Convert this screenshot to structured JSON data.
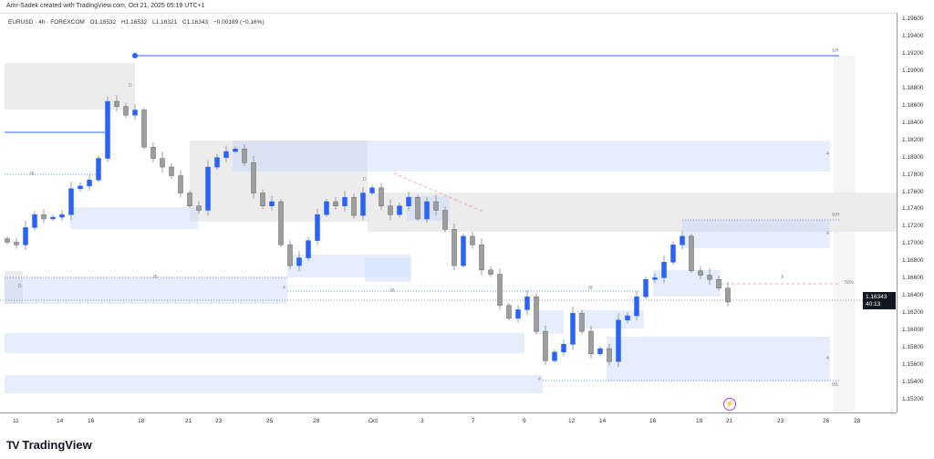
{
  "credit": "Amr-Sadek created with TradingView.com, Oct 21, 2025 05:19 UTC+1",
  "legend": {
    "symbol": "EURUSD · 4h · FOREXCOM",
    "open": "O1.16532",
    "high": "H1.16532",
    "low": "L1.16321",
    "close": "C1.16343",
    "change": "−0.00189 (−0.16%)"
  },
  "price_ticks": [
    "1.19600",
    "1.19400",
    "1.19200",
    "1.19000",
    "1.18800",
    "1.18600",
    "1.18400",
    "1.18200",
    "1.18000",
    "1.17800",
    "1.17600",
    "1.17400",
    "1.17200",
    "1.17000",
    "1.16800",
    "1.16600",
    "1.16400",
    "1.16200",
    "1.16000",
    "1.15800",
    "1.15600",
    "1.15400",
    "1.15200"
  ],
  "time_ticks": [
    "11",
    "14",
    "16",
    "18",
    "21",
    "23",
    "25",
    "28",
    "Oct",
    "3",
    "7",
    "9",
    "12",
    "14",
    "16",
    "19",
    "21",
    "23",
    "26",
    "28"
  ],
  "price_tag": {
    "price": "1.16343",
    "countdown": "40:13"
  },
  "labels": {
    "sh": "SH",
    "wh": "WH",
    "wl": "WL",
    "fifty": "50%",
    "four": "4",
    "d": "D",
    "ib": "IB",
    "x": "X"
  },
  "logo": "TradingView",
  "colors": {
    "up": "#2962ff",
    "down": "#9e9e9e",
    "line": "#2962ff",
    "pink": "#f4a3b3"
  },
  "chart_data": {
    "type": "candlestick",
    "symbol": "EURUSD",
    "timeframe": "4h",
    "ylim": [
      1.151,
      1.197
    ],
    "closes": [
      1.1703,
      1.17,
      1.172,
      1.1735,
      1.173,
      1.1732,
      1.1735,
      1.1765,
      1.1768,
      1.1775,
      1.18,
      1.1866,
      1.186,
      1.185,
      1.1856,
      1.1813,
      1.18,
      1.179,
      1.178,
      1.176,
      1.1745,
      1.174,
      1.179,
      1.1801,
      1.1808,
      1.1811,
      1.1795,
      1.176,
      1.1745,
      1.175,
      1.17,
      1.1676,
      1.1685,
      1.1705,
      1.1735,
      1.175,
      1.1745,
      1.1755,
      1.1734,
      1.176,
      1.1766,
      1.1745,
      1.1735,
      1.1745,
      1.1755,
      1.173,
      1.175,
      1.174,
      1.1718,
      1.1676,
      1.171,
      1.17,
      1.1671,
      1.1666,
      1.163,
      1.1615,
      1.1625,
      1.164,
      1.16,
      1.1566,
      1.1576,
      1.1585,
      1.1621,
      1.16,
      1.1574,
      1.158,
      1.1565,
      1.1613,
      1.1618,
      1.164,
      1.166,
      1.1662,
      1.168,
      1.17,
      1.171,
      1.167,
      1.1665,
      1.166,
      1.165,
      1.1634
    ],
    "swing_high": 1.192,
    "last_price": 1.16343
  }
}
